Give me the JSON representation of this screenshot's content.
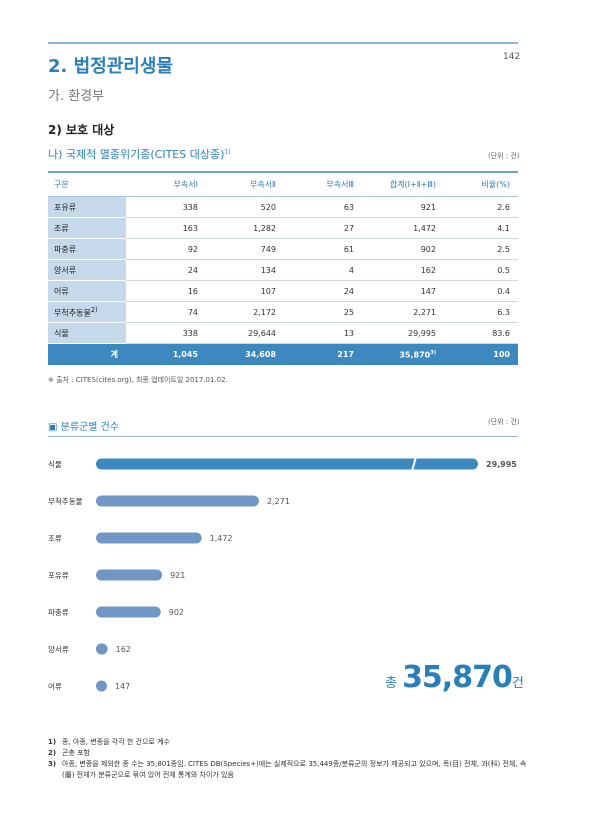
{
  "header": {
    "section_title": "2. 법정관리생물",
    "subsection_title": "가. 환경부",
    "page_number": "142"
  },
  "protection": {
    "heading": "2) 보호 대상",
    "subheading": "나) 국제적 멸종위기종(CITES 대상종)",
    "subheading_note": "1)",
    "unit": "(단위 : 건)"
  },
  "table": {
    "columns": [
      "구분",
      "부속서Ⅰ",
      "부속서Ⅱ",
      "부속서Ⅲ",
      "합계(Ⅰ+Ⅱ+Ⅲ)",
      "비율(%)"
    ],
    "rows": [
      {
        "category": "포유류",
        "note": "",
        "values": [
          "338",
          "520",
          "63",
          "921",
          "2.6"
        ]
      },
      {
        "category": "조류",
        "note": "",
        "values": [
          "163",
          "1,282",
          "27",
          "1,472",
          "4.1"
        ]
      },
      {
        "category": "파충류",
        "note": "",
        "values": [
          "92",
          "749",
          "61",
          "902",
          "2.5"
        ]
      },
      {
        "category": "양서류",
        "note": "",
        "values": [
          "24",
          "134",
          "4",
          "162",
          "0.5"
        ]
      },
      {
        "category": "어류",
        "note": "",
        "values": [
          "16",
          "107",
          "24",
          "147",
          "0.4"
        ]
      },
      {
        "category": "무척추동물",
        "note": "2)",
        "values": [
          "74",
          "2,172",
          "25",
          "2,271",
          "6.3"
        ]
      },
      {
        "category": "식물",
        "note": "",
        "values": [
          "338",
          "29,644",
          "13",
          "29,995",
          "83.6"
        ]
      }
    ],
    "total": {
      "category": "계",
      "values": [
        "1,045",
        "34,608",
        "217",
        "35,870",
        "100"
      ],
      "total_note": "3)"
    }
  },
  "source_note": "※ 출처 : CITES(cites.org), 최종 업데이트일 2017.01.02.",
  "chart_section": {
    "title": "▣ 분류군별 건수",
    "unit": "(단위 : 건)",
    "total_prefix": "총",
    "total_value": "35,870",
    "total_suffix": "건"
  },
  "chart_data": {
    "type": "bar",
    "orientation": "horizontal",
    "categories": [
      "식물",
      "무척추동물",
      "조류",
      "포유류",
      "파충류",
      "양서류",
      "어류"
    ],
    "values": [
      29995,
      2271,
      1472,
      921,
      902,
      162,
      147
    ],
    "value_labels": [
      "29,995",
      "2,271",
      "1,472",
      "921",
      "902",
      "162",
      "147"
    ],
    "axis_break": true,
    "colors": {
      "bar": "#7097c4",
      "highlight_bar": "#3c88bf",
      "highlight_label": "#2b7fb8"
    }
  },
  "footnotes": [
    {
      "num": "1)",
      "text": "종, 아종, 변종을 각각 한 건으로 계수"
    },
    {
      "num": "2)",
      "text": "곤충 포함"
    },
    {
      "num": "3)",
      "text": "아종, 변종을 제외한 종 수는 35,801종임. CITES DB(Species+)에는 실제적으로 35,449종/분류군의 정보가 제공되고 있으며, 목(目) 전체, 과(科) 전체, 속(屬) 전체가 분류군으로 묶여 있어 전체 통계와 차이가 있음"
    }
  ]
}
